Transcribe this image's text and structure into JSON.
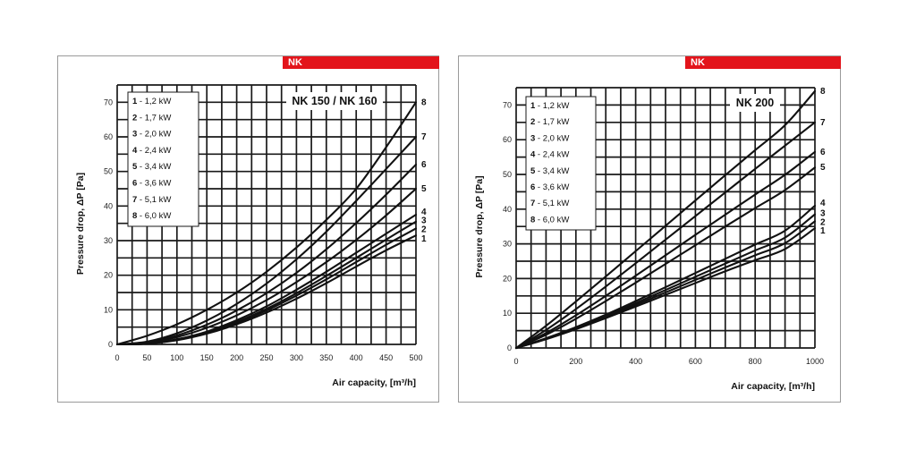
{
  "chart_data": [
    {
      "type": "line",
      "badge": "NK",
      "title": "NK 150 / NK 160",
      "xlabel": "Air capacity, [m³/h]",
      "ylabel": "Pressure drop, ΔP [Pa]",
      "xlim": [
        0,
        500
      ],
      "ylim": [
        0,
        75
      ],
      "xticks": [
        0,
        50,
        100,
        150,
        200,
        250,
        300,
        350,
        400,
        450,
        500
      ],
      "yticks": [
        0,
        10,
        20,
        30,
        40,
        50,
        60,
        70
      ],
      "grid": true,
      "legend_position": "top-left",
      "legend": [
        {
          "num": "1",
          "text": " - 1,2 kW"
        },
        {
          "num": "2",
          "text": " - 1,7 kW"
        },
        {
          "num": "3",
          "text": " - 2,0 kW"
        },
        {
          "num": "4",
          "text": " - 2,4 kW"
        },
        {
          "num": "5",
          "text": " - 3,4 kW"
        },
        {
          "num": "6",
          "text": " - 3,6 kW"
        },
        {
          "num": "7",
          "text": " - 5,1 kW"
        },
        {
          "num": "8",
          "text": " - 6,0 kW"
        }
      ],
      "series": [
        {
          "name": "1",
          "x": [
            0,
            50,
            100,
            150,
            200,
            250,
            300,
            350,
            400,
            450,
            500
          ],
          "y": [
            0,
            0.2,
            1.2,
            3.1,
            5.8,
            9.2,
            13.2,
            17.7,
            22.5,
            27.2,
            31.5
          ]
        },
        {
          "name": "2",
          "x": [
            0,
            50,
            100,
            150,
            200,
            250,
            300,
            350,
            400,
            450,
            500
          ],
          "y": [
            0,
            0.2,
            1.3,
            3.3,
            6.2,
            9.8,
            14.1,
            18.8,
            23.8,
            28.8,
            33.5
          ]
        },
        {
          "name": "3",
          "x": [
            0,
            50,
            100,
            150,
            200,
            250,
            300,
            350,
            400,
            450,
            500
          ],
          "y": [
            0,
            0.2,
            1.4,
            3.5,
            6.5,
            10.3,
            14.8,
            19.8,
            25.0,
            30.3,
            35.5
          ]
        },
        {
          "name": "4",
          "x": [
            0,
            50,
            100,
            150,
            200,
            250,
            300,
            350,
            400,
            450,
            500
          ],
          "y": [
            0,
            0.2,
            1.5,
            3.7,
            7.0,
            11.0,
            15.8,
            21.0,
            26.5,
            32.0,
            37.5
          ]
        },
        {
          "name": "5",
          "x": [
            0,
            50,
            100,
            150,
            200,
            250,
            300,
            350,
            400,
            450,
            500
          ],
          "y": [
            0,
            0.4,
            2.1,
            4.8,
            8.4,
            12.8,
            18.0,
            23.8,
            30.2,
            37.3,
            45.0
          ]
        },
        {
          "name": "6",
          "x": [
            0,
            50,
            100,
            150,
            200,
            250,
            300,
            350,
            400,
            450,
            500
          ],
          "y": [
            0,
            0.6,
            2.6,
            5.7,
            9.8,
            14.8,
            20.7,
            27.5,
            35.1,
            43.3,
            52.0
          ]
        },
        {
          "name": "7",
          "x": [
            0,
            50,
            100,
            150,
            200,
            250,
            300,
            350,
            400,
            450,
            500
          ],
          "y": [
            0,
            0.8,
            3.2,
            6.9,
            11.7,
            17.6,
            24.6,
            32.6,
            41.5,
            50.7,
            60.0
          ]
        },
        {
          "name": "8",
          "x": [
            0,
            50,
            100,
            150,
            200,
            250,
            300,
            350,
            400,
            450,
            500
          ],
          "y": [
            0,
            2.5,
            5.8,
            10.0,
            15.0,
            21.0,
            28.0,
            36.0,
            45.0,
            57.0,
            70.0
          ]
        }
      ]
    },
    {
      "type": "line",
      "badge": "NK",
      "title": "NK 200",
      "xlabel": "Air capacity, [m³/h]",
      "ylabel": "Pressure drop, ΔP [Pa]",
      "xlim": [
        0,
        1000
      ],
      "ylim": [
        0,
        75
      ],
      "xticks": [
        0,
        200,
        400,
        600,
        800,
        1000
      ],
      "xticklabels": [
        "0",
        "200",
        "400",
        "600",
        "800",
        "1000"
      ],
      "yticks": [
        0,
        10,
        20,
        30,
        40,
        50,
        60,
        70
      ],
      "grid": true,
      "legend_position": "top-left",
      "legend": [
        {
          "num": "1",
          "text": " - 1,2 kW"
        },
        {
          "num": "2",
          "text": " - 1,7 kW"
        },
        {
          "num": "3",
          "text": " - 2,0 kW"
        },
        {
          "num": "4",
          "text": " - 2,4 kW"
        },
        {
          "num": "5",
          "text": " - 3,4 kW"
        },
        {
          "num": "6",
          "text": " - 3,6 kW"
        },
        {
          "num": "7",
          "text": " - 5,1 kW"
        },
        {
          "num": "8",
          "text": " - 6,0 kW"
        }
      ],
      "series": [
        {
          "name": "1",
          "x": [
            0,
            100,
            200,
            300,
            400,
            500,
            600,
            700,
            800,
            900,
            1000
          ],
          "y": [
            0,
            2.5,
            5.4,
            8.6,
            11.9,
            15.3,
            18.7,
            22.1,
            25.3,
            28.5,
            34.5
          ]
        },
        {
          "name": "2",
          "x": [
            0,
            100,
            200,
            300,
            400,
            500,
            600,
            700,
            800,
            900,
            1000
          ],
          "y": [
            0,
            2.6,
            5.6,
            8.9,
            12.4,
            16.0,
            19.6,
            23.2,
            26.7,
            30.2,
            36.5
          ]
        },
        {
          "name": "3",
          "x": [
            0,
            100,
            200,
            300,
            400,
            500,
            600,
            700,
            800,
            900,
            1000
          ],
          "y": [
            0,
            2.7,
            5.8,
            9.2,
            12.9,
            16.7,
            20.5,
            24.3,
            28.1,
            31.8,
            38.5
          ]
        },
        {
          "name": "4",
          "x": [
            0,
            100,
            200,
            300,
            400,
            500,
            600,
            700,
            800,
            900,
            1000
          ],
          "y": [
            0,
            2.8,
            6.0,
            9.6,
            13.5,
            17.5,
            21.6,
            25.7,
            29.8,
            33.8,
            41.0
          ]
        },
        {
          "name": "5",
          "x": [
            0,
            100,
            200,
            300,
            400,
            500,
            600,
            700,
            800,
            900,
            1000
          ],
          "y": [
            0,
            3.8,
            8.4,
            13.5,
            18.8,
            24.2,
            29.6,
            35.0,
            40.3,
            45.5,
            52.0
          ]
        },
        {
          "name": "6",
          "x": [
            0,
            100,
            200,
            300,
            400,
            500,
            600,
            700,
            800,
            900,
            1000
          ],
          "y": [
            0,
            4.3,
            9.4,
            15.0,
            20.8,
            26.7,
            32.6,
            38.4,
            44.2,
            49.9,
            56.5
          ]
        },
        {
          "name": "7",
          "x": [
            0,
            100,
            200,
            300,
            400,
            500,
            600,
            700,
            800,
            900,
            1000
          ],
          "y": [
            0,
            5.2,
            11.2,
            17.7,
            24.4,
            31.2,
            38.0,
            44.8,
            51.6,
            58.3,
            65.0
          ]
        },
        {
          "name": "8",
          "x": [
            0,
            100,
            200,
            300,
            400,
            500,
            600,
            700,
            800,
            900,
            1000
          ],
          "y": [
            0,
            6.4,
            13.4,
            20.6,
            27.9,
            35.2,
            42.5,
            49.8,
            57.0,
            64.2,
            74.0
          ]
        }
      ]
    }
  ]
}
